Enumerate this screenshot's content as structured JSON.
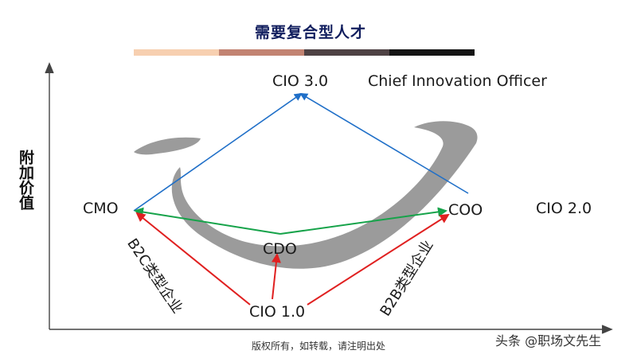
{
  "header": {
    "title": "需要复合型人才",
    "gradient_colors": [
      "#f7cfb0",
      "#c28372",
      "#4e4244",
      "#151515"
    ]
  },
  "axes": {
    "y_label": "附加价值",
    "color": "#444444"
  },
  "nodes": {
    "cio3": "CIO 3.0",
    "cio3_desc": "Chief Innovation Officer",
    "cmo": "CMO",
    "coo": "COO",
    "cio2": "CIO 2.0",
    "cdo": "CDO",
    "cio1": "CIO 1.0"
  },
  "edge_labels": {
    "b2c": "B2C类型企业",
    "b2b": "B2B类型企业"
  },
  "colors": {
    "blue_arrow": "#1f6fc8",
    "green_arrow": "#16a34a",
    "red_arrow": "#e02020",
    "smile_shape": "#8a8a8a"
  },
  "footer": {
    "copyright": "版权所有，如转载，请注明出处",
    "watermark": "头条 @职场文先生"
  }
}
